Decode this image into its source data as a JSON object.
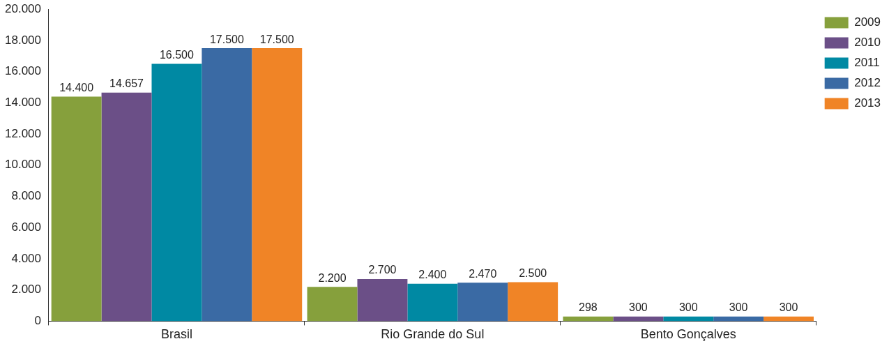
{
  "chart_data": {
    "type": "bar",
    "categories": [
      "Brasil",
      "Rio Grande do Sul",
      "Bento Gonçalves"
    ],
    "series": [
      {
        "name": "2009",
        "color": "#86a03c",
        "values": [
          14400,
          2200,
          298
        ],
        "value_labels": [
          "14.400",
          "2.200",
          "298"
        ]
      },
      {
        "name": "2010",
        "color": "#6b4f87",
        "values": [
          14657,
          2700,
          300
        ],
        "value_labels": [
          "14.657",
          "2.700",
          "300"
        ]
      },
      {
        "name": "2011",
        "color": "#0089a3",
        "values": [
          16500,
          2400,
          300
        ],
        "value_labels": [
          "16.500",
          "2.400",
          "300"
        ]
      },
      {
        "name": "2012",
        "color": "#3a6aa4",
        "values": [
          17500,
          2470,
          300
        ],
        "value_labels": [
          "17.500",
          "2.470",
          "300"
        ]
      },
      {
        "name": "2013",
        "color": "#f08426",
        "values": [
          17500,
          2500,
          300
        ],
        "value_labels": [
          "17.500",
          "2.500",
          "300"
        ]
      }
    ],
    "ylim": [
      0,
      20000
    ],
    "yticks": [
      {
        "value": 0,
        "label": "0"
      },
      {
        "value": 2000,
        "label": "2.000"
      },
      {
        "value": 4000,
        "label": "4.000"
      },
      {
        "value": 6000,
        "label": "6.000"
      },
      {
        "value": 8000,
        "label": "8.000"
      },
      {
        "value": 10000,
        "label": "10.000"
      },
      {
        "value": 12000,
        "label": "12.000"
      },
      {
        "value": 14000,
        "label": "14.000"
      },
      {
        "value": 16000,
        "label": "16.000"
      },
      {
        "value": 18000,
        "label": "18.000"
      },
      {
        "value": 20000,
        "label": "20.000"
      }
    ],
    "grid": false,
    "legend": "top right"
  }
}
